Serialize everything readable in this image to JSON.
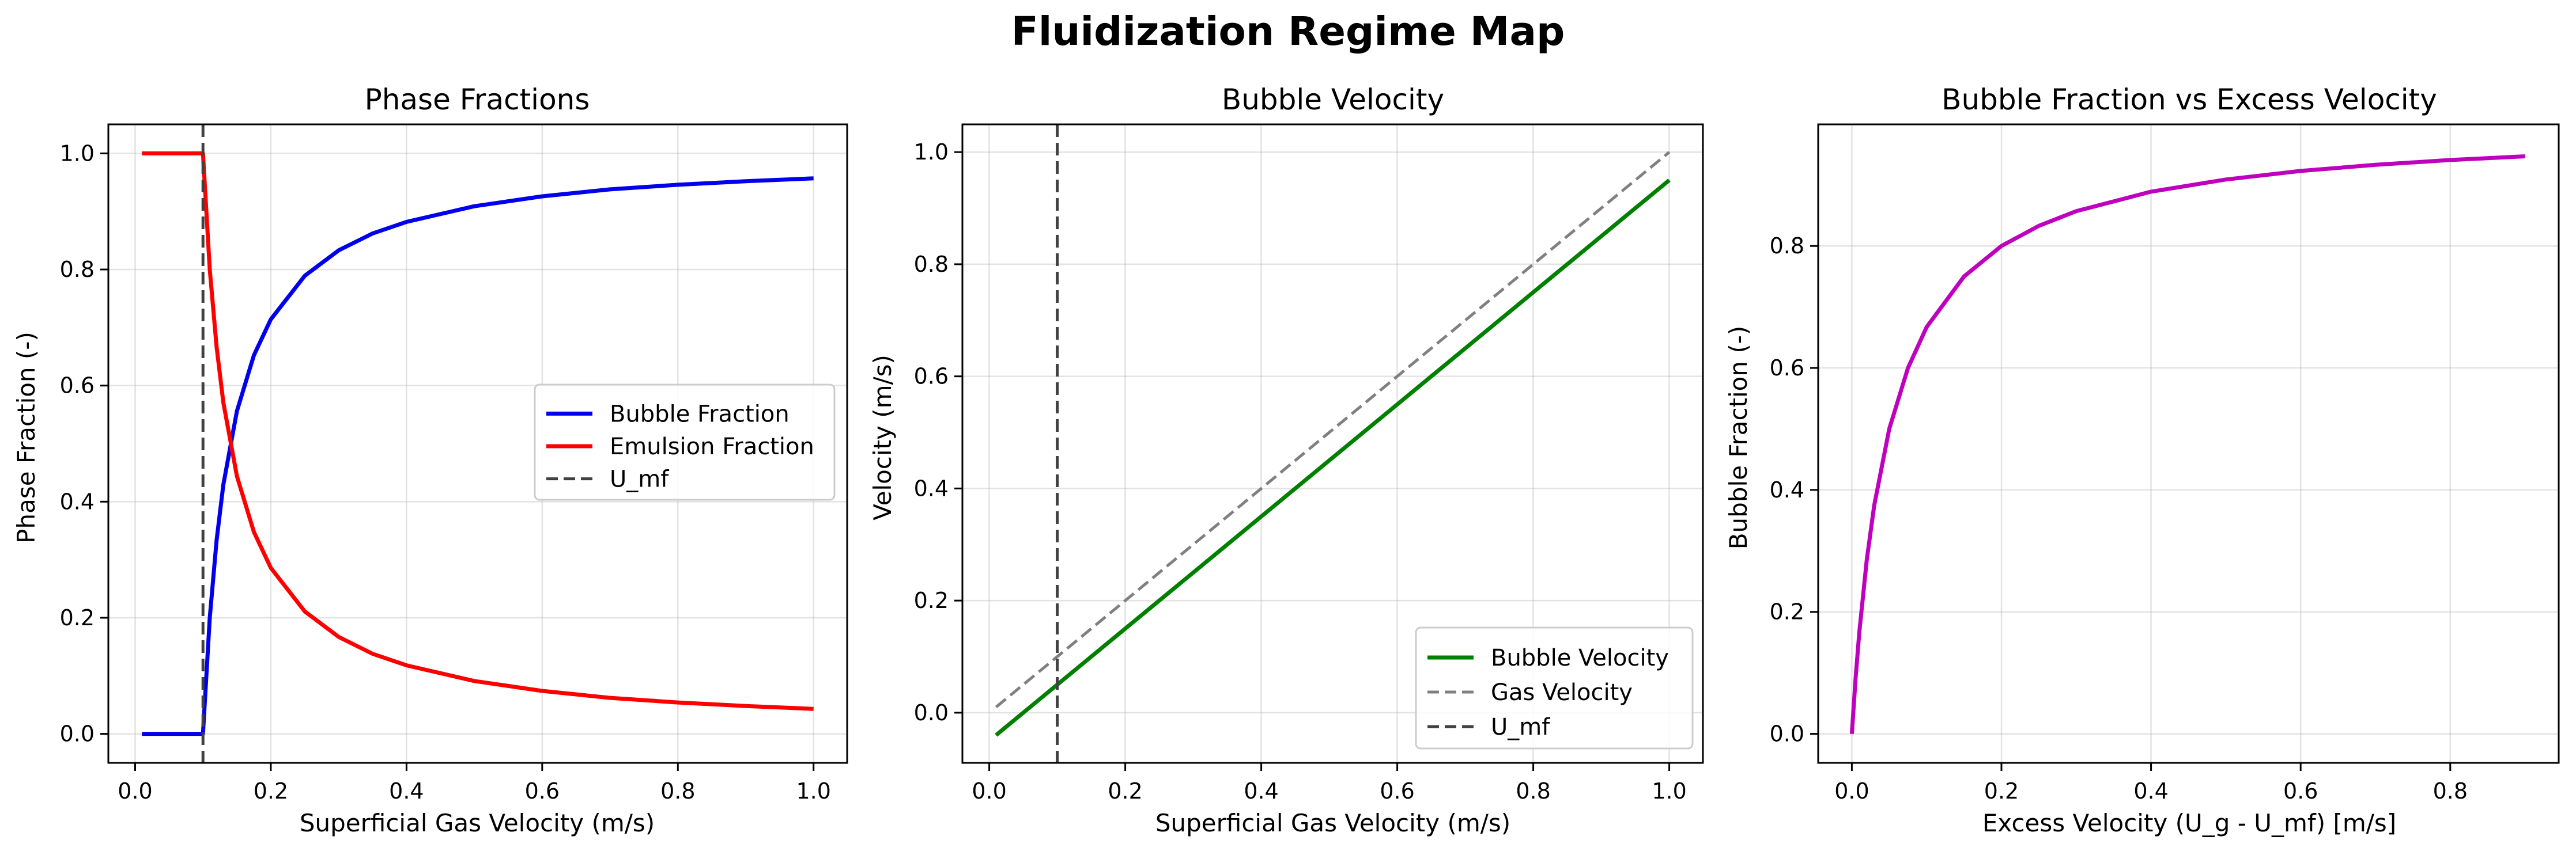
{
  "figure": {
    "title": "Fluidization Regime Map"
  },
  "colors": {
    "bubble": "#0000ee",
    "emulsion": "#ff0000",
    "umf": "#404040",
    "bubble_velocity": "#008000",
    "gas_velocity": "#808080",
    "excess": "#bf00bf"
  },
  "chart_data": [
    {
      "type": "line",
      "title": "Phase Fractions",
      "xlabel": "Superficial Gas Velocity (m/s)",
      "ylabel": "Phase Fraction (-)",
      "xlim": [
        -0.0395,
        1.0495
      ],
      "ylim": [
        -0.05,
        1.05
      ],
      "xticks": [
        0.0,
        0.2,
        0.4,
        0.6,
        0.8,
        1.0
      ],
      "xtick_labels": [
        "0.0",
        "0.2",
        "0.4",
        "0.6",
        "0.8",
        "1.0"
      ],
      "yticks": [
        0.0,
        0.2,
        0.4,
        0.6,
        0.8,
        1.0
      ],
      "ytick_labels": [
        "0.0",
        "0.2",
        "0.4",
        "0.6",
        "0.8",
        "1.0"
      ],
      "grid": true,
      "legend_position": "center-right",
      "series": [
        {
          "name": "Bubble Fraction",
          "color": "#0000ee",
          "style": "solid",
          "x": [
            0.01,
            0.05,
            0.1,
            0.11,
            0.12,
            0.13,
            0.15,
            0.175,
            0.2,
            0.25,
            0.3,
            0.35,
            0.4,
            0.5,
            0.6,
            0.7,
            0.8,
            0.9,
            1.0
          ],
          "y": [
            0.0,
            0.0,
            0.0,
            0.2,
            0.333,
            0.429,
            0.556,
            0.652,
            0.714,
            0.789,
            0.833,
            0.862,
            0.882,
            0.909,
            0.926,
            0.938,
            0.946,
            0.952,
            0.957
          ]
        },
        {
          "name": "Emulsion Fraction",
          "color": "#ff0000",
          "style": "solid",
          "x": [
            0.01,
            0.05,
            0.1,
            0.11,
            0.12,
            0.13,
            0.15,
            0.175,
            0.2,
            0.25,
            0.3,
            0.35,
            0.4,
            0.5,
            0.6,
            0.7,
            0.8,
            0.9,
            1.0
          ],
          "y": [
            1.0,
            1.0,
            1.0,
            0.8,
            0.667,
            0.571,
            0.444,
            0.348,
            0.286,
            0.211,
            0.167,
            0.138,
            0.118,
            0.091,
            0.074,
            0.062,
            0.054,
            0.048,
            0.043
          ]
        },
        {
          "name": "U_mf",
          "color": "#404040",
          "style": "dashed",
          "vline": 0.1
        }
      ]
    },
    {
      "type": "line",
      "title": "Bubble Velocity",
      "xlabel": "Superficial Gas Velocity (m/s)",
      "ylabel": "Velocity (m/s)",
      "xlim": [
        -0.0395,
        1.0495
      ],
      "ylim": [
        -0.0895,
        1.0495
      ],
      "xticks": [
        0.0,
        0.2,
        0.4,
        0.6,
        0.8,
        1.0
      ],
      "xtick_labels": [
        "0.0",
        "0.2",
        "0.4",
        "0.6",
        "0.8",
        "1.0"
      ],
      "yticks": [
        0.0,
        0.2,
        0.4,
        0.6,
        0.8,
        1.0
      ],
      "ytick_labels": [
        "0.0",
        "0.2",
        "0.4",
        "0.6",
        "0.8",
        "1.0"
      ],
      "grid": true,
      "legend_position": "lower-right",
      "series": [
        {
          "name": "Bubble Velocity",
          "color": "#008000",
          "style": "solid",
          "x": [
            0.01,
            1.0
          ],
          "y": [
            -0.04,
            0.95
          ]
        },
        {
          "name": "Gas Velocity",
          "color": "#808080",
          "style": "dashed",
          "x": [
            0.01,
            1.0
          ],
          "y": [
            0.01,
            1.0
          ]
        },
        {
          "name": "U_mf",
          "color": "#404040",
          "style": "dashed",
          "vline": 0.1
        }
      ]
    },
    {
      "type": "line",
      "title": "Bubble Fraction vs Excess Velocity",
      "xlabel": "Excess Velocity (U_g - U_mf) [m/s]",
      "ylabel": "Bubble Fraction (-)",
      "xlim": [
        -0.045,
        0.945
      ],
      "ylim": [
        -0.0476,
        0.9994
      ],
      "xticks": [
        0.0,
        0.2,
        0.4,
        0.6,
        0.8
      ],
      "xtick_labels": [
        "0.0",
        "0.2",
        "0.4",
        "0.6",
        "0.8"
      ],
      "yticks": [
        0.0,
        0.2,
        0.4,
        0.6,
        0.8
      ],
      "ytick_labels": [
        "0.0",
        "0.2",
        "0.4",
        "0.6",
        "0.8"
      ],
      "grid": true,
      "legend_position": "none",
      "series": [
        {
          "name": "",
          "color": "#bf00bf",
          "style": "solid",
          "x": [
            0.0,
            0.005,
            0.01,
            0.02,
            0.03,
            0.05,
            0.075,
            0.1,
            0.15,
            0.2,
            0.25,
            0.3,
            0.4,
            0.5,
            0.6,
            0.7,
            0.8,
            0.9
          ],
          "y": [
            0.0,
            0.091,
            0.167,
            0.286,
            0.375,
            0.5,
            0.6,
            0.667,
            0.75,
            0.8,
            0.833,
            0.857,
            0.889,
            0.909,
            0.923,
            0.933,
            0.941,
            0.947
          ]
        }
      ]
    }
  ]
}
